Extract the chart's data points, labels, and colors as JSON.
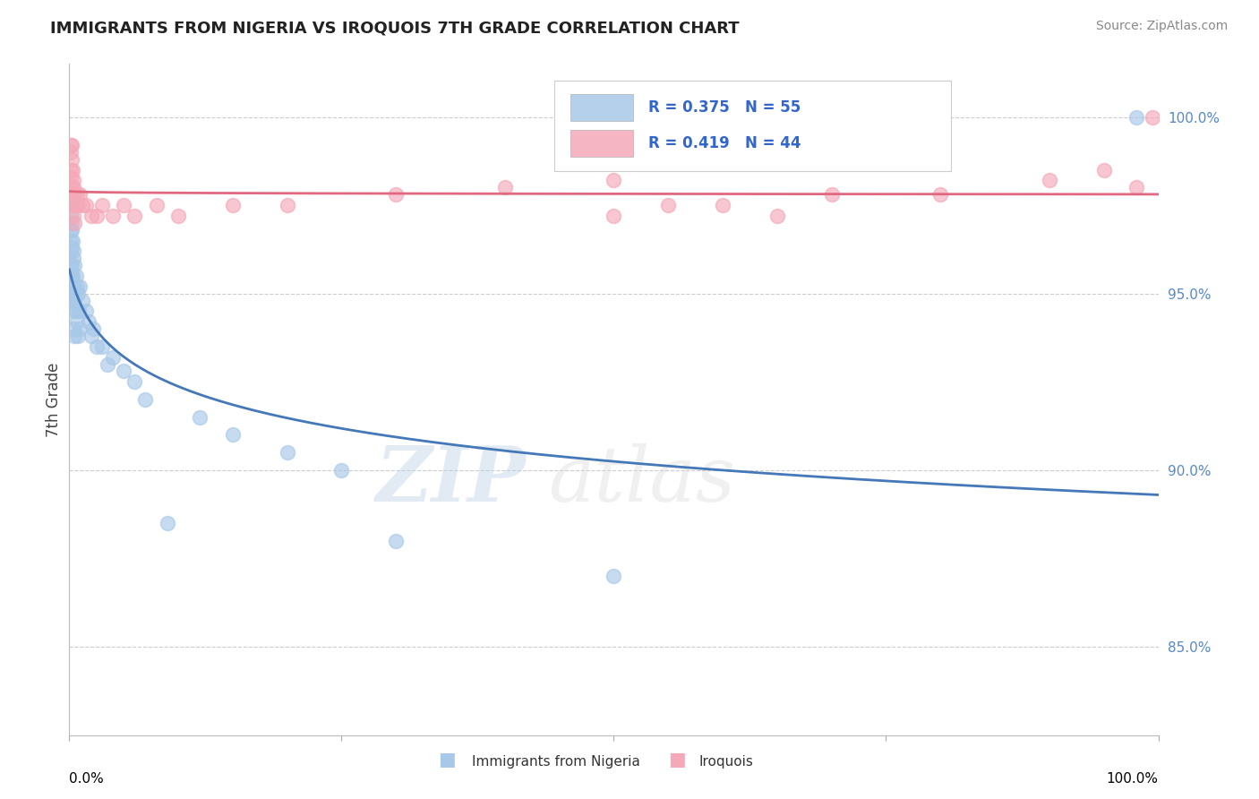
{
  "title": "IMMIGRANTS FROM NIGERIA VS IROQUOIS 7TH GRADE CORRELATION CHART",
  "source_text": "Source: ZipAtlas.com",
  "ylabel": "7th Grade",
  "legend_entry1": "R = 0.375   N = 55",
  "legend_entry2": "R = 0.419   N = 44",
  "legend_label1": "Immigrants from Nigeria",
  "legend_label2": "Iroquois",
  "blue_color": "#a8c8e8",
  "pink_color": "#f4a8b8",
  "blue_line_color": "#4478b8",
  "pink_line_color": "#e06880",
  "right_ytick_color": "#5588cc",
  "right_yticks": [
    85.0,
    90.0,
    95.0,
    100.0
  ],
  "right_yticklabels": [
    "85.0%",
    "90.0%",
    "95.0%",
    "100.0%"
  ],
  "xlim": [
    0.0,
    100.0
  ],
  "ylim": [
    82.5,
    101.5
  ],
  "blue_x": [
    0.1,
    0.1,
    0.1,
    0.1,
    0.1,
    0.15,
    0.15,
    0.15,
    0.15,
    0.2,
    0.2,
    0.2,
    0.2,
    0.25,
    0.25,
    0.3,
    0.3,
    0.3,
    0.35,
    0.35,
    0.4,
    0.4,
    0.4,
    0.5,
    0.5,
    0.5,
    0.6,
    0.6,
    0.7,
    0.7,
    0.8,
    0.8,
    0.9,
    1.0,
    1.0,
    1.2,
    1.5,
    1.8,
    2.0,
    2.2,
    2.5,
    3.0,
    3.5,
    4.0,
    5.0,
    6.0,
    7.0,
    9.0,
    12.0,
    15.0,
    20.0,
    25.0,
    30.0,
    50.0,
    98.0
  ],
  "blue_y": [
    97.5,
    96.8,
    96.2,
    95.5,
    94.8,
    97.2,
    96.5,
    95.8,
    95.0,
    97.0,
    96.3,
    95.5,
    94.8,
    96.8,
    95.8,
    96.5,
    95.5,
    94.5,
    96.2,
    95.2,
    96.0,
    95.0,
    94.0,
    95.8,
    94.8,
    93.8,
    95.5,
    94.5,
    95.2,
    94.2,
    95.0,
    93.8,
    94.5,
    95.2,
    94.0,
    94.8,
    94.5,
    94.2,
    93.8,
    94.0,
    93.5,
    93.5,
    93.0,
    93.2,
    92.8,
    92.5,
    92.0,
    88.5,
    91.5,
    91.0,
    90.5,
    90.0,
    88.0,
    87.0,
    100.0
  ],
  "pink_x": [
    0.1,
    0.1,
    0.15,
    0.15,
    0.2,
    0.2,
    0.25,
    0.25,
    0.3,
    0.3,
    0.35,
    0.4,
    0.4,
    0.5,
    0.5,
    0.6,
    0.7,
    0.8,
    1.0,
    1.2,
    1.5,
    2.0,
    2.5,
    3.0,
    4.0,
    5.0,
    6.0,
    8.0,
    10.0,
    15.0,
    20.0,
    30.0,
    40.0,
    50.0,
    60.0,
    70.0,
    80.0,
    90.0,
    95.0,
    98.0,
    99.5,
    50.0,
    55.0,
    65.0
  ],
  "pink_y": [
    99.2,
    98.5,
    99.0,
    98.3,
    99.2,
    98.0,
    98.8,
    97.8,
    98.5,
    97.5,
    98.2,
    98.0,
    97.2,
    97.8,
    97.0,
    97.5,
    97.8,
    97.5,
    97.8,
    97.5,
    97.5,
    97.2,
    97.2,
    97.5,
    97.2,
    97.5,
    97.2,
    97.5,
    97.2,
    97.5,
    97.5,
    97.8,
    98.0,
    98.2,
    97.5,
    97.8,
    97.8,
    98.2,
    98.5,
    98.0,
    100.0,
    97.2,
    97.5,
    97.2
  ]
}
